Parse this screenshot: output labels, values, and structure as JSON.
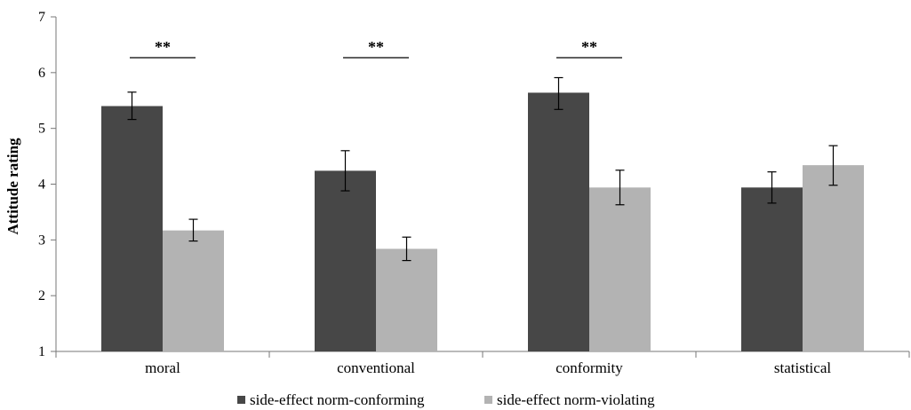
{
  "chart_data": {
    "type": "bar",
    "title": "",
    "xlabel": "",
    "ylabel": "Attitude rating",
    "ylim": [
      1,
      7
    ],
    "yticks": [
      "1",
      "2",
      "3",
      "4",
      "5",
      "6",
      "7"
    ],
    "categories": [
      "moral",
      "conventional",
      "conformity",
      "statistical"
    ],
    "series": [
      {
        "name": "side-effect norm-conforming",
        "color": "#474747",
        "values": [
          5.4,
          4.24,
          5.64,
          3.94
        ],
        "err_low": [
          5.16,
          3.88,
          5.34,
          3.66
        ],
        "err_high": [
          5.65,
          4.6,
          5.91,
          4.22
        ]
      },
      {
        "name": "side-effect norm-violating",
        "color": "#b3b3b3",
        "values": [
          3.17,
          2.84,
          3.94,
          4.34
        ],
        "err_low": [
          2.98,
          2.63,
          3.63,
          3.98
        ],
        "err_high": [
          3.37,
          3.05,
          4.25,
          4.69
        ]
      }
    ],
    "significance": [
      {
        "category": "moral",
        "label": "**"
      },
      {
        "category": "conventional",
        "label": "**"
      },
      {
        "category": "conformity",
        "label": "**"
      }
    ],
    "legend_position": "bottom",
    "grid": false
  }
}
